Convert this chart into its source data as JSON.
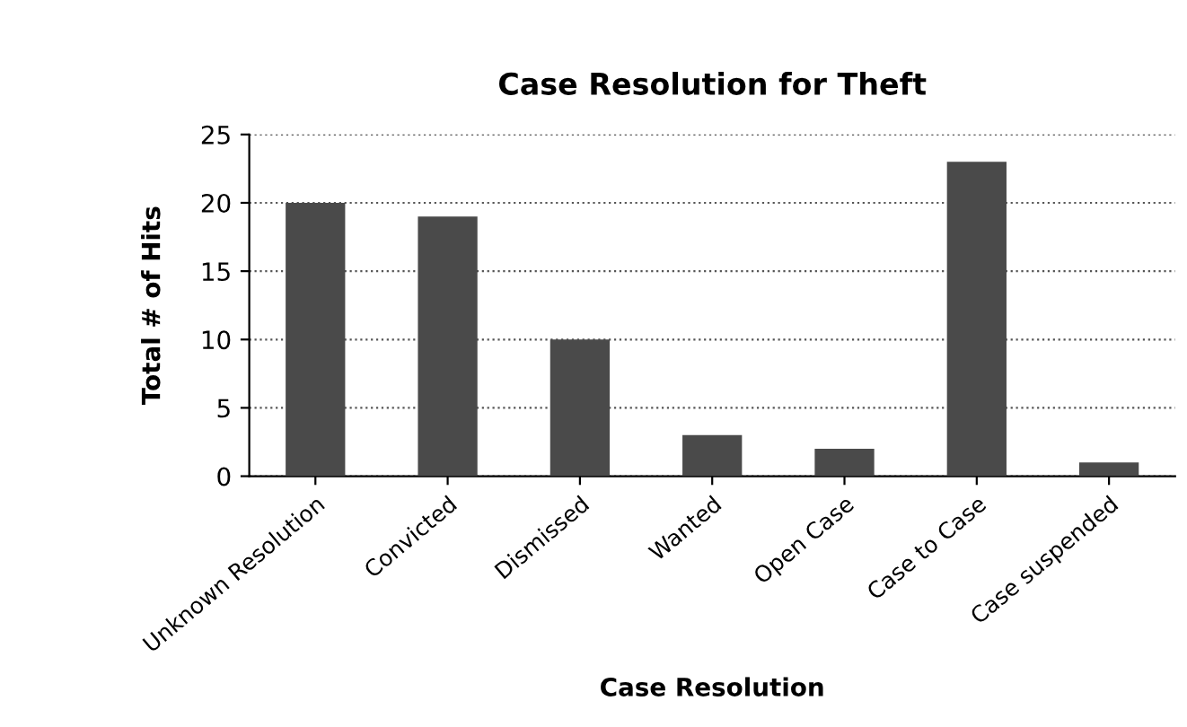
{
  "chart_data": {
    "type": "bar",
    "title": "Case Resolution for Theft",
    "xlabel": "Case Resolution",
    "ylabel": "Total # of Hits",
    "categories": [
      "Unknown Resolution",
      "Convicted",
      "Dismissed",
      "Wanted",
      "Open Case",
      "Case to Case",
      "Case suspended"
    ],
    "values": [
      20,
      19,
      10,
      3,
      2,
      23,
      1
    ],
    "color": "#4a4a4a",
    "ylim": [
      0,
      25
    ],
    "yticks": [
      0,
      5,
      10,
      15,
      20,
      25
    ],
    "grid": "y"
  }
}
